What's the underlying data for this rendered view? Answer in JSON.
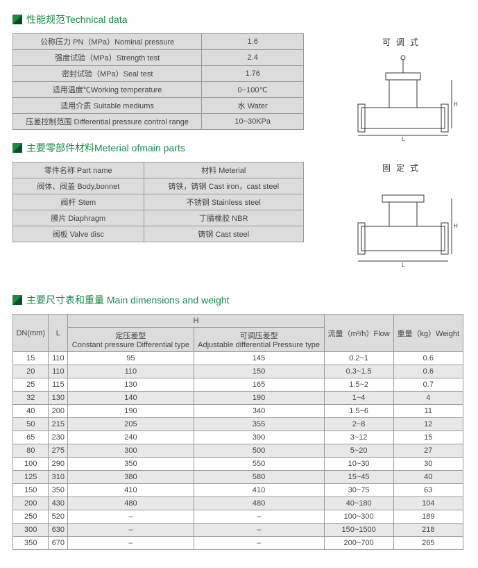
{
  "sections": {
    "tech": "性能规范Technical data",
    "parts": "主要零部件材料Meterial ofmain parts",
    "dims": "主要尺寸表和重量 Main dimensions and weight"
  },
  "diagrams": {
    "adjustable_label": "可调式",
    "fixed_label": "固定式"
  },
  "tech_table": {
    "rows": [
      [
        "公称压力 PN（MPa）Nominal pressure",
        "1.6"
      ],
      [
        "强度试验（MPa）Strength test",
        "2.4"
      ],
      [
        "密封试验（MPa）Seal test",
        "1.76"
      ],
      [
        "适用温度℃Working temperature",
        "0~100℃"
      ],
      [
        "适用介质 Suitable mediums",
        "水 Water"
      ],
      [
        "压差控制范围 Differential pressure control range",
        "10~30KPa"
      ]
    ]
  },
  "parts_table": {
    "header": [
      "零件名称 Part name",
      "材料 Meterial"
    ],
    "rows": [
      [
        "阀体、阀盖 Body,bonnet",
        "铸铁，铸钢 Cast iron，cast steel"
      ],
      [
        "阀杆 Stem",
        "不锈钢 Stainless steel"
      ],
      [
        "膜片 Diaphragm",
        "丁腈橡胶 NBR"
      ],
      [
        "阀板 Valve disc",
        "铸钢 Cast steel"
      ]
    ]
  },
  "dims_table": {
    "head": {
      "dn": "DN(mm)",
      "l": "L",
      "h": "H",
      "const": "定压差型",
      "const_en": "Constant pressure Differential type",
      "adj": "可调压差型",
      "adj_en": "Adjustable differential Pressure type",
      "flow": "流量（m³/h）Flow",
      "weight": "重量（kg）Weight"
    },
    "rows": [
      [
        "15",
        "110",
        "95",
        "145",
        "0.2~1",
        "0.6"
      ],
      [
        "20",
        "110",
        "110",
        "150",
        "0.3~1.5",
        "0.6"
      ],
      [
        "25",
        "115",
        "130",
        "165",
        "1.5~2",
        "0.7"
      ],
      [
        "32",
        "130",
        "140",
        "190",
        "1~4",
        "4"
      ],
      [
        "40",
        "200",
        "190",
        "340",
        "1.5~6",
        "11"
      ],
      [
        "50",
        "215",
        "205",
        "355",
        "2~8",
        "12"
      ],
      [
        "65",
        "230",
        "240",
        "390",
        "3~12",
        "15"
      ],
      [
        "80",
        "275",
        "300",
        "500",
        "5~20",
        "27"
      ],
      [
        "100",
        "290",
        "350",
        "550",
        "10~30",
        "30"
      ],
      [
        "125",
        "310",
        "380",
        "580",
        "15~45",
        "40"
      ],
      [
        "150",
        "350",
        "410",
        "410",
        "30~75",
        "63"
      ],
      [
        "200",
        "430",
        "480",
        "480",
        "40~180",
        "104"
      ],
      [
        "250",
        "520",
        "–",
        "–",
        "100~300",
        "189"
      ],
      [
        "300",
        "630",
        "–",
        "–",
        "150~1500",
        "218"
      ],
      [
        "350",
        "670",
        "–",
        "–",
        "200~700",
        "265"
      ]
    ]
  },
  "colors": {
    "accent": "#1a8a4a",
    "header_bg": "#dcdcdc",
    "alt_bg": "#e8e8e8",
    "border": "#999999",
    "text": "#444444"
  }
}
